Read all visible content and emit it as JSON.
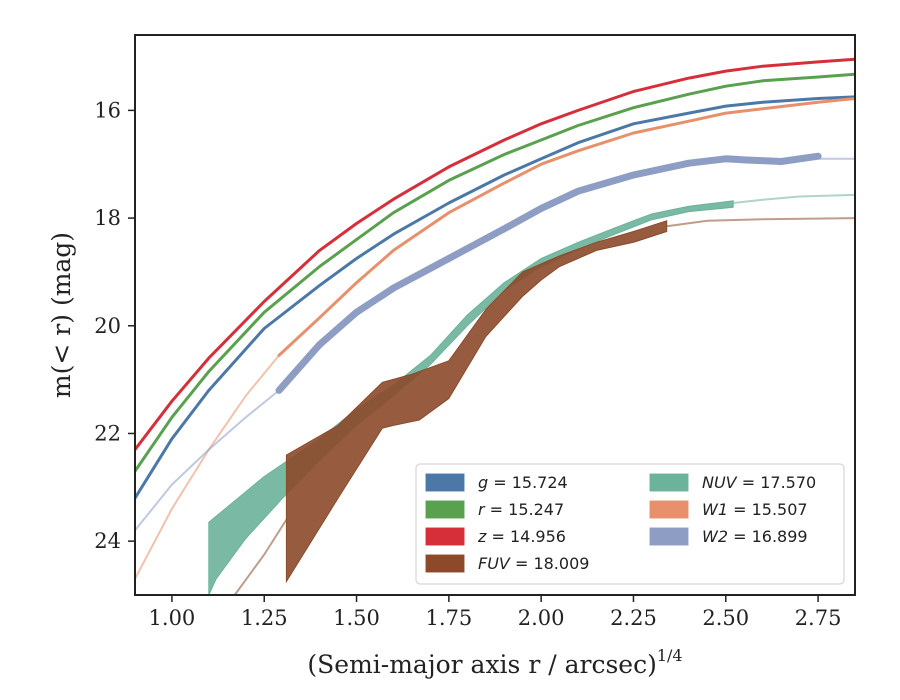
{
  "chart_data": {
    "type": "line",
    "xlabel": "(Semi-major axis r / arcsec)",
    "xlabel_sup": "1/4",
    "ylabel": "m(< r) (mag)",
    "xlim": [
      0.9,
      2.85
    ],
    "ylim": [
      25.0,
      14.6
    ],
    "y_inverted": true,
    "x_ticks": [
      1.0,
      1.25,
      1.5,
      1.75,
      2.0,
      2.25,
      2.5,
      2.75
    ],
    "x_tick_labels": [
      "1.00",
      "1.25",
      "1.50",
      "1.75",
      "2.00",
      "2.25",
      "2.50",
      "2.75"
    ],
    "y_ticks": [
      16,
      18,
      20,
      22,
      24
    ],
    "y_tick_labels": [
      "16",
      "18",
      "20",
      "22",
      "24"
    ],
    "grid": false,
    "legend_position": "lower-right",
    "legend": [
      {
        "band": "g",
        "label": "= 15.724",
        "color": "#4c78a8"
      },
      {
        "band": "r",
        "label": "= 15.247",
        "color": "#59a14f"
      },
      {
        "band": "z",
        "label": "= 14.956",
        "color": "#d62f3a"
      },
      {
        "band": "FUV",
        "label": "= 18.009",
        "color": "#8c4a2a"
      },
      {
        "band": "NUV",
        "label": "= 17.570",
        "color": "#6bb39a"
      },
      {
        "band": "W1",
        "label": "= 15.507",
        "color": "#e8906c"
      },
      {
        "band": "W2",
        "label": "= 16.899",
        "color": "#8d9dc4"
      }
    ],
    "series": [
      {
        "name": "z",
        "color": "#d62f3a",
        "width": 3,
        "band_x": [
          0.9,
          1.0,
          1.1,
          1.25,
          1.4,
          1.5,
          1.6,
          1.75,
          1.9,
          2.0,
          2.1,
          2.25,
          2.4,
          2.5,
          2.6,
          2.75,
          2.85
        ],
        "band_y": [
          22.3,
          21.4,
          20.6,
          19.55,
          18.6,
          18.1,
          17.65,
          17.05,
          16.55,
          16.25,
          16.0,
          15.65,
          15.4,
          15.27,
          15.18,
          15.1,
          15.05
        ],
        "ext_x": [],
        "ext_y": []
      },
      {
        "name": "r",
        "color": "#59a14f",
        "width": 3,
        "band_x": [
          0.9,
          1.0,
          1.1,
          1.25,
          1.4,
          1.5,
          1.6,
          1.75,
          1.9,
          2.0,
          2.1,
          2.25,
          2.4,
          2.5,
          2.6,
          2.75,
          2.85
        ],
        "band_y": [
          22.7,
          21.7,
          20.85,
          19.75,
          18.9,
          18.4,
          17.9,
          17.3,
          16.82,
          16.55,
          16.28,
          15.95,
          15.7,
          15.55,
          15.45,
          15.38,
          15.33
        ],
        "ext_x": [],
        "ext_y": []
      },
      {
        "name": "g",
        "color": "#4c78a8",
        "width": 3,
        "band_x": [
          0.9,
          1.0,
          1.1,
          1.25,
          1.4,
          1.5,
          1.6,
          1.75,
          1.9,
          2.0,
          2.1,
          2.25,
          2.4,
          2.5,
          2.6,
          2.75,
          2.85
        ],
        "band_y": [
          23.2,
          22.1,
          21.2,
          20.05,
          19.25,
          18.75,
          18.3,
          17.72,
          17.2,
          16.9,
          16.6,
          16.25,
          16.05,
          15.92,
          15.85,
          15.78,
          15.75
        ],
        "ext_x": [],
        "ext_y": []
      },
      {
        "name": "W1",
        "color": "#e8906c",
        "width": 3,
        "band_x": [
          1.29,
          1.4,
          1.5,
          1.6,
          1.75,
          1.9,
          2.0,
          2.1,
          2.25,
          2.4,
          2.5,
          2.6,
          2.75,
          2.85
        ],
        "band_y": [
          20.55,
          19.85,
          19.2,
          18.6,
          17.9,
          17.35,
          17.0,
          16.75,
          16.42,
          16.2,
          16.05,
          15.97,
          15.85,
          15.78
        ],
        "ext_x": [
          0.9,
          1.0,
          1.1,
          1.2,
          1.29
        ],
        "ext_y": [
          24.7,
          23.4,
          22.3,
          21.3,
          20.55
        ]
      },
      {
        "name": "W2",
        "color": "#8d9dc4",
        "width": 7,
        "band_x": [
          1.29,
          1.4,
          1.5,
          1.6,
          1.75,
          1.9,
          2.0,
          2.1,
          2.25,
          2.4,
          2.5,
          2.55,
          2.65,
          2.75
        ],
        "band_y": [
          21.2,
          20.35,
          19.75,
          19.3,
          18.75,
          18.2,
          17.82,
          17.5,
          17.2,
          16.98,
          16.9,
          16.92,
          16.95,
          16.85
        ],
        "ext_x": [
          0.9,
          1.0,
          1.1,
          1.2,
          1.29
        ],
        "ext_y": [
          23.8,
          22.95,
          22.3,
          21.7,
          21.2
        ],
        "tail_x": [
          2.75,
          2.85
        ],
        "tail_y": [
          16.9,
          16.9
        ]
      },
      {
        "name": "NUV",
        "color": "#6bb39a",
        "poly_upper": [
          [
            1.1,
            23.65
          ],
          [
            1.25,
            22.8
          ],
          [
            1.4,
            22.1
          ],
          [
            1.5,
            21.55
          ],
          [
            1.6,
            21.1
          ],
          [
            1.7,
            20.55
          ],
          [
            1.8,
            19.8
          ],
          [
            1.9,
            19.2
          ],
          [
            2.0,
            18.75
          ],
          [
            2.1,
            18.45
          ],
          [
            2.2,
            18.18
          ],
          [
            2.3,
            17.92
          ],
          [
            2.4,
            17.78
          ],
          [
            2.52,
            17.68
          ]
        ],
        "poly_lower": [
          [
            2.52,
            17.8
          ],
          [
            2.4,
            17.88
          ],
          [
            2.3,
            18.03
          ],
          [
            2.2,
            18.3
          ],
          [
            2.1,
            18.58
          ],
          [
            2.0,
            18.9
          ],
          [
            1.9,
            19.35
          ],
          [
            1.8,
            20.0
          ],
          [
            1.7,
            20.72
          ],
          [
            1.6,
            21.3
          ],
          [
            1.5,
            21.85
          ],
          [
            1.4,
            22.5
          ],
          [
            1.3,
            23.2
          ],
          [
            1.2,
            23.95
          ],
          [
            1.12,
            24.7
          ],
          [
            1.1,
            25.0
          ]
        ],
        "ext_x": [
          2.52,
          2.6,
          2.7,
          2.85
        ],
        "ext_y": [
          17.72,
          17.66,
          17.6,
          17.57
        ]
      },
      {
        "name": "FUV",
        "color": "#8c4a2a",
        "poly_upper": [
          [
            1.31,
            22.4
          ],
          [
            1.45,
            21.85
          ],
          [
            1.57,
            21.05
          ],
          [
            1.65,
            20.9
          ],
          [
            1.75,
            20.65
          ],
          [
            1.85,
            19.7
          ],
          [
            1.95,
            19.0
          ],
          [
            2.05,
            18.7
          ],
          [
            2.15,
            18.45
          ],
          [
            2.25,
            18.25
          ],
          [
            2.34,
            18.05
          ]
        ],
        "poly_lower": [
          [
            2.34,
            18.25
          ],
          [
            2.25,
            18.45
          ],
          [
            2.15,
            18.6
          ],
          [
            2.05,
            18.9
          ],
          [
            2.0,
            19.15
          ],
          [
            1.95,
            19.45
          ],
          [
            1.85,
            20.2
          ],
          [
            1.75,
            21.35
          ],
          [
            1.67,
            21.75
          ],
          [
            1.6,
            21.85
          ],
          [
            1.57,
            21.9
          ],
          [
            1.45,
            23.2
          ],
          [
            1.31,
            24.75
          ]
        ],
        "ext_x": [
          2.34,
          2.45,
          2.6,
          2.85
        ],
        "ext_y": [
          18.15,
          18.05,
          18.02,
          18.0
        ],
        "lowext_x": [
          1.17,
          1.25,
          1.31
        ],
        "lowext_y": [
          25.0,
          24.25,
          23.6
        ]
      }
    ]
  }
}
